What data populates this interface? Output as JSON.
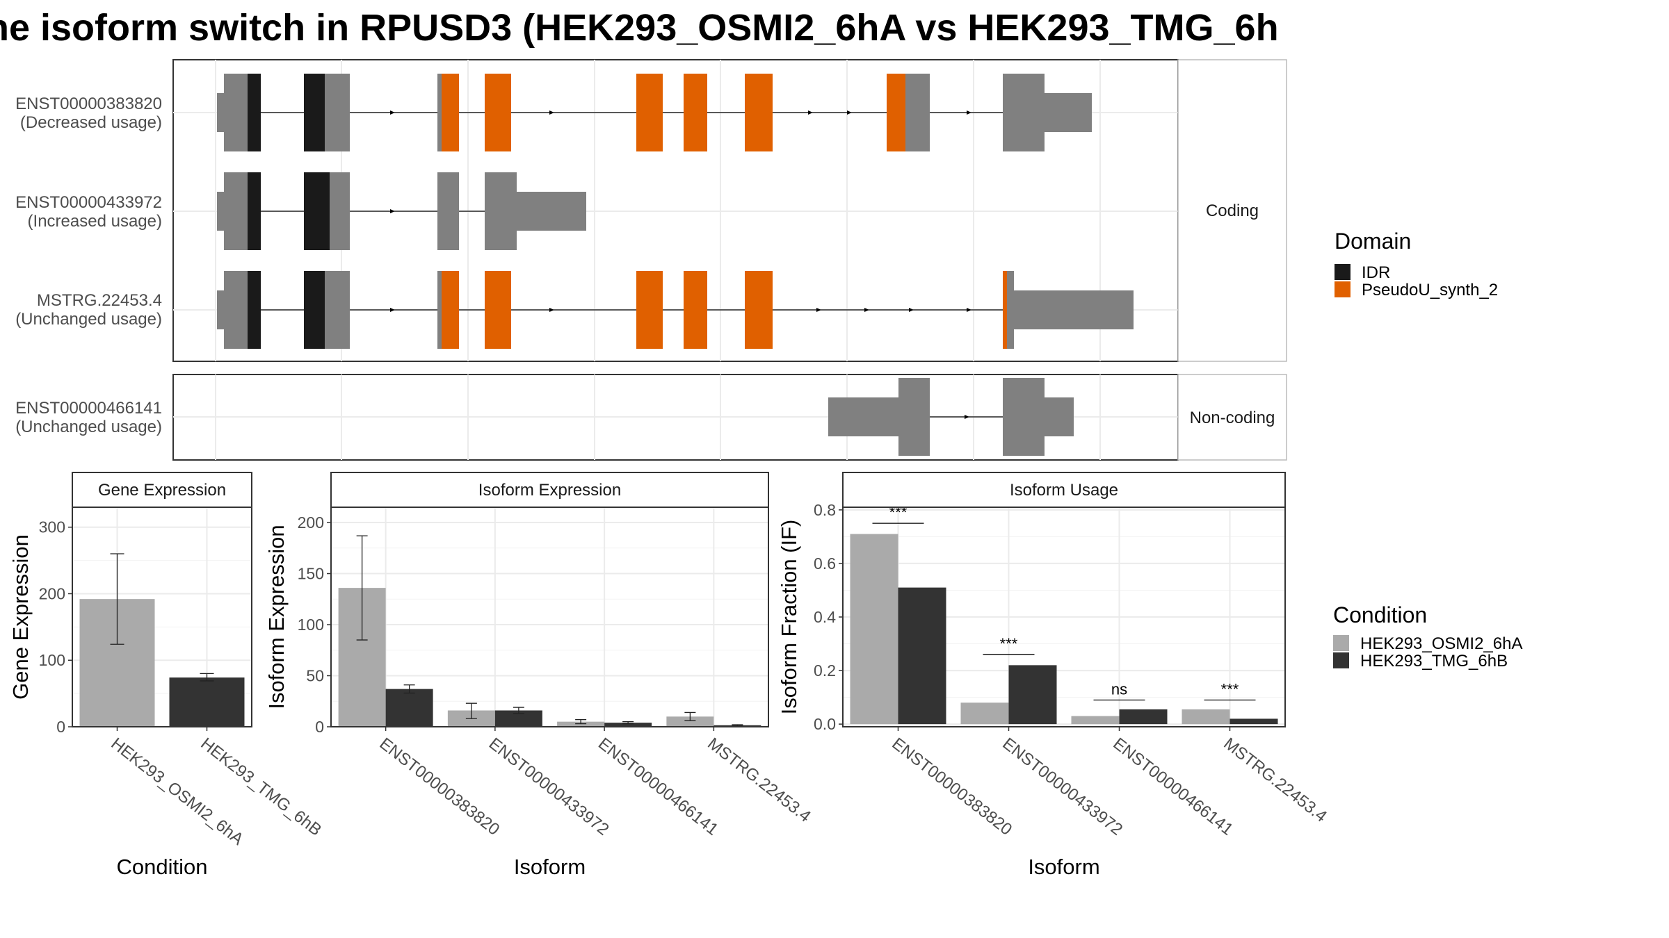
{
  "title": "ne isoform switch in RPUSD3 (HEK293_OSMI2_6hA vs HEK293_TMG_6h",
  "colors": {
    "idr": "#1a1a1a",
    "pseudo": "#e06000",
    "exon": "#808080",
    "cond1": "#aaaaaa",
    "cond2": "#333333"
  },
  "structure": {
    "panels": [
      {
        "label": "Coding",
        "transcripts": [
          {
            "id": "ENST00000383820",
            "status": "(Decreased usage)"
          },
          {
            "id": "ENST00000433972",
            "status": "(Increased usage)"
          },
          {
            "id": "MSTRG.22453.4",
            "status": "(Unchanged usage)"
          }
        ]
      },
      {
        "label": "Non-coding",
        "transcripts": [
          {
            "id": "ENST00000466141",
            "status": "(Unchanged usage)"
          }
        ]
      }
    ]
  },
  "legends": {
    "domain": {
      "title": "Domain",
      "items": [
        "IDR",
        "PseudoU_synth_2"
      ]
    },
    "condition": {
      "title": "Condition",
      "items": [
        "HEK293_OSMI2_6hA",
        "HEK293_TMG_6hB"
      ]
    }
  },
  "chart_data": [
    {
      "type": "bar",
      "strip": "Gene Expression",
      "xlabel": "Condition",
      "ylabel": "Gene Expression",
      "categories": [
        "HEK293_OSMI2_6hA",
        "HEK293_TMG_6hB"
      ],
      "values": [
        192,
        74
      ],
      "errors": [
        [
          124,
          260
        ],
        [
          69,
          80
        ]
      ],
      "ylim": [
        0,
        330
      ],
      "yticks": [
        0,
        100,
        200,
        300
      ]
    },
    {
      "type": "bar",
      "strip": "Isoform Expression",
      "xlabel": "Isoform",
      "ylabel": "Isoform Expression",
      "categories": [
        "ENST00000383820",
        "ENST00000433972",
        "ENST00000466141",
        "MSTRG.22453.4"
      ],
      "series": [
        {
          "name": "HEK293_OSMI2_6hA",
          "values": [
            136,
            16,
            5,
            10
          ],
          "errors": [
            [
              85,
              187
            ],
            [
              8,
              23
            ],
            [
              3,
              7
            ],
            [
              6,
              14
            ]
          ]
        },
        {
          "name": "HEK293_TMG_6hB",
          "values": [
            37,
            16,
            4,
            1.5
          ],
          "errors": [
            [
              33,
              41
            ],
            [
              13,
              19
            ],
            [
              3,
              5
            ],
            [
              1,
              2
            ]
          ]
        }
      ],
      "ylim": [
        0,
        215
      ],
      "yticks": [
        0,
        50,
        100,
        150,
        200
      ]
    },
    {
      "type": "bar",
      "strip": "Isoform Usage",
      "xlabel": "Isoform",
      "ylabel": "Isoform Fraction (IF)",
      "categories": [
        "ENST00000383820",
        "ENST00000433972",
        "ENST00000466141",
        "MSTRG.22453.4"
      ],
      "series": [
        {
          "name": "HEK293_OSMI2_6hA",
          "values": [
            0.71,
            0.08,
            0.03,
            0.055
          ]
        },
        {
          "name": "HEK293_TMG_6hB",
          "values": [
            0.51,
            0.22,
            0.055,
            0.02
          ]
        }
      ],
      "significance": [
        "***",
        "***",
        "ns",
        "***"
      ],
      "sig_levels": [
        0.75,
        0.26,
        0.09,
        0.09
      ],
      "ylim": [
        -0.01,
        0.81
      ],
      "yticks": [
        "0.0",
        "0.2",
        "0.4",
        "0.6",
        "0.8"
      ]
    }
  ]
}
